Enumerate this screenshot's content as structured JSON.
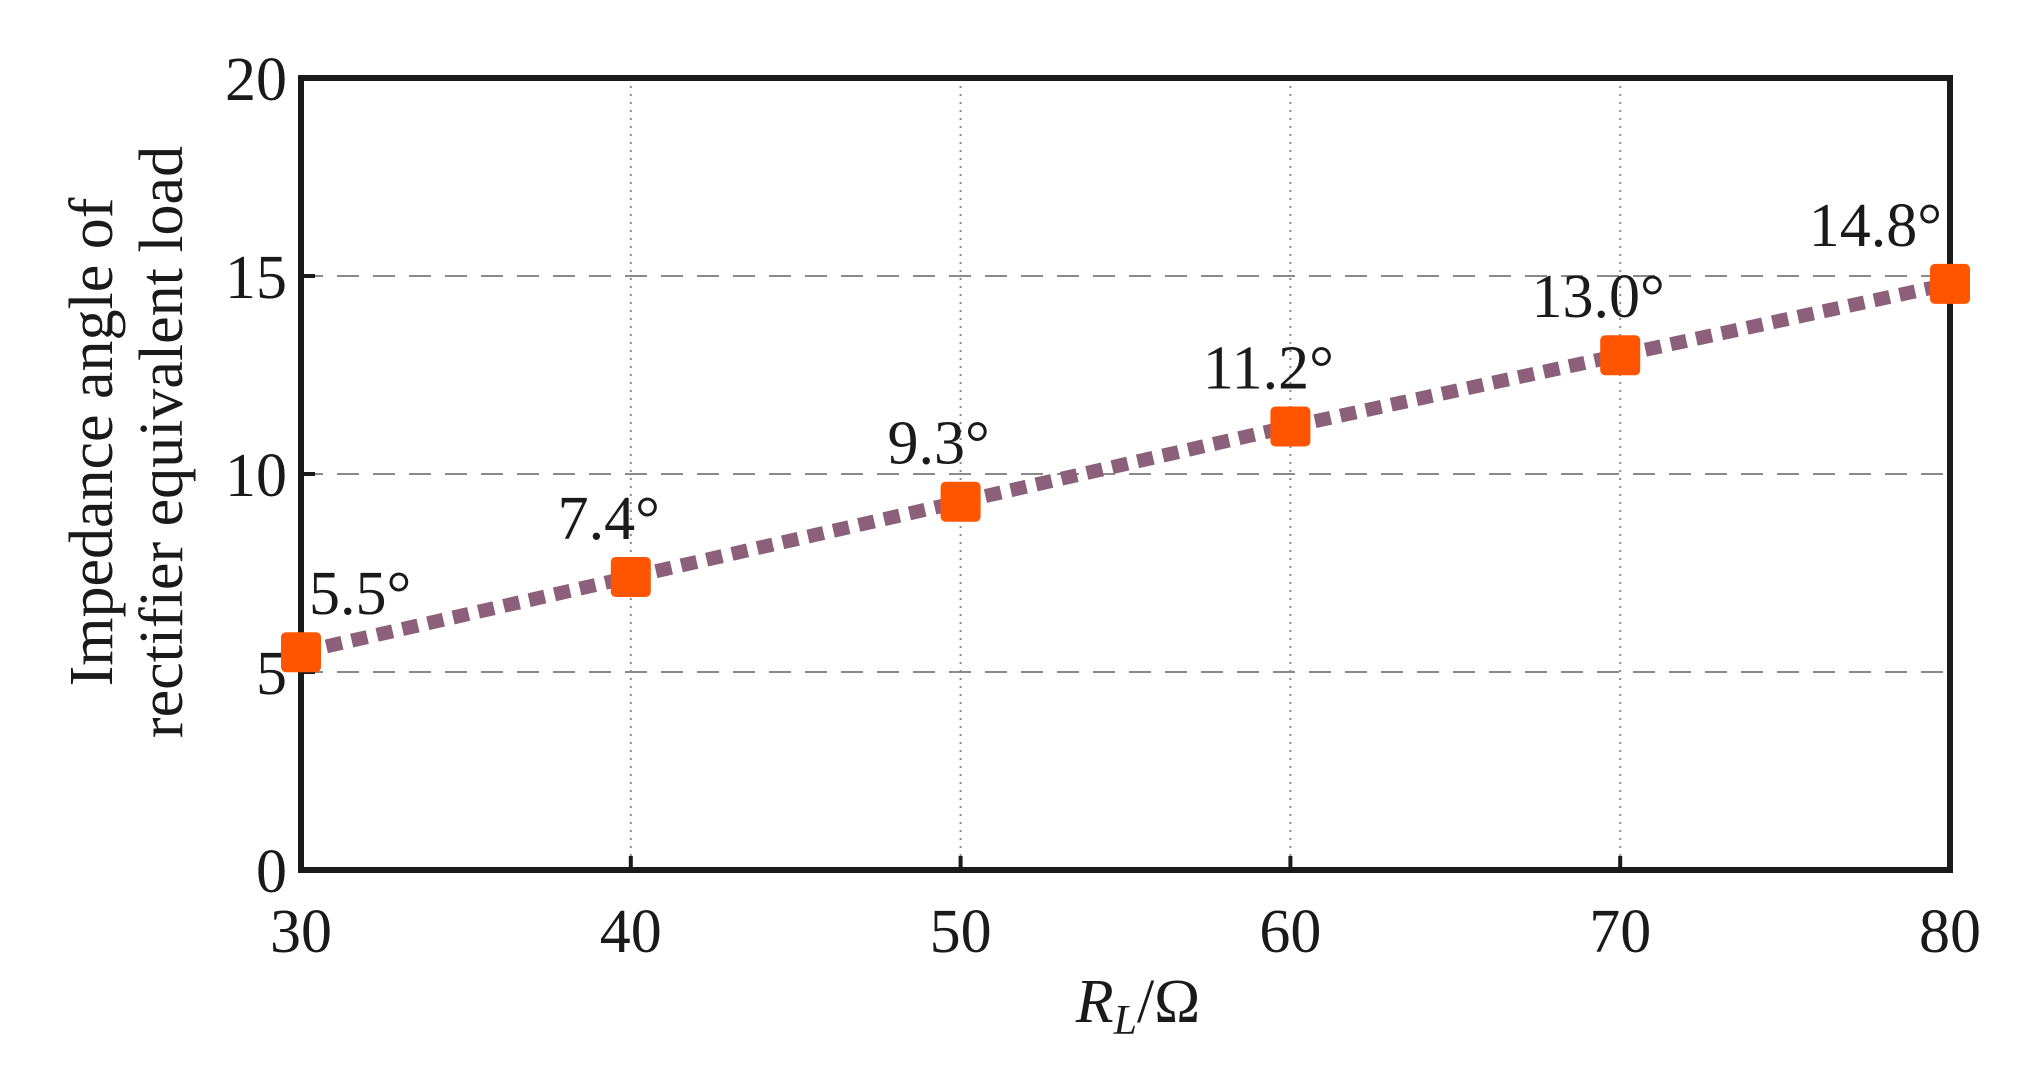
{
  "chart_data": {
    "type": "line",
    "title": "",
    "xlabel": "R_L/Ω",
    "xlabel_parts": {
      "symbol": "R",
      "subscript": "L",
      "unit": "/Ω"
    },
    "ylabel_lines": [
      "Impedance angle of",
      "rectifier equivalent load"
    ],
    "xlim": [
      30,
      80
    ],
    "ylim": [
      0,
      20
    ],
    "xticks": [
      30,
      40,
      50,
      60,
      70,
      80
    ],
    "yticks": [
      0,
      5,
      10,
      15,
      20
    ],
    "grid": true,
    "series": [
      {
        "x": [
          30,
          40,
          50,
          60,
          70,
          80
        ],
        "y": [
          5.5,
          7.4,
          9.3,
          11.2,
          13.0,
          14.8
        ],
        "labels": [
          "5.5°",
          "7.4°",
          "9.3°",
          "11.2°",
          "13.0°",
          "14.8°"
        ]
      }
    ],
    "colors": {
      "line": "#8c5f7a",
      "marker": "#ff5500",
      "axis": "#1a1a1a",
      "grid": "#8a8a8a"
    }
  }
}
